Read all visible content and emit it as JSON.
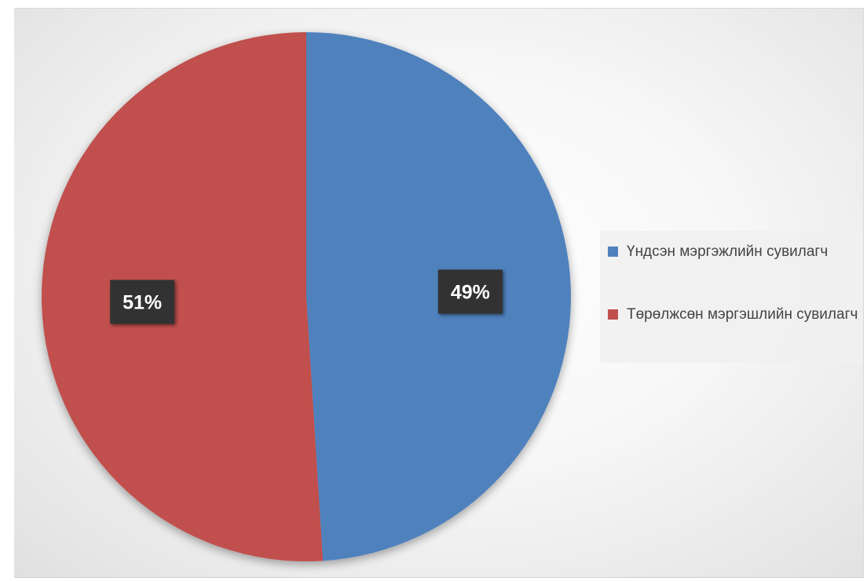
{
  "chart_data": {
    "type": "pie",
    "categories": [
      "Үндсэн мэргэжлийн сувилагч",
      "Төрөлжсөн мэргэшлийн сувилагч"
    ],
    "values": [
      49,
      51
    ],
    "data_labels": [
      "49%",
      "51%"
    ],
    "colors": [
      "#4f81bd",
      "#c0504d"
    ],
    "label_box_color": "#333333",
    "legend_position": "right",
    "start_angle_deg": 0,
    "direction": "clockwise"
  }
}
